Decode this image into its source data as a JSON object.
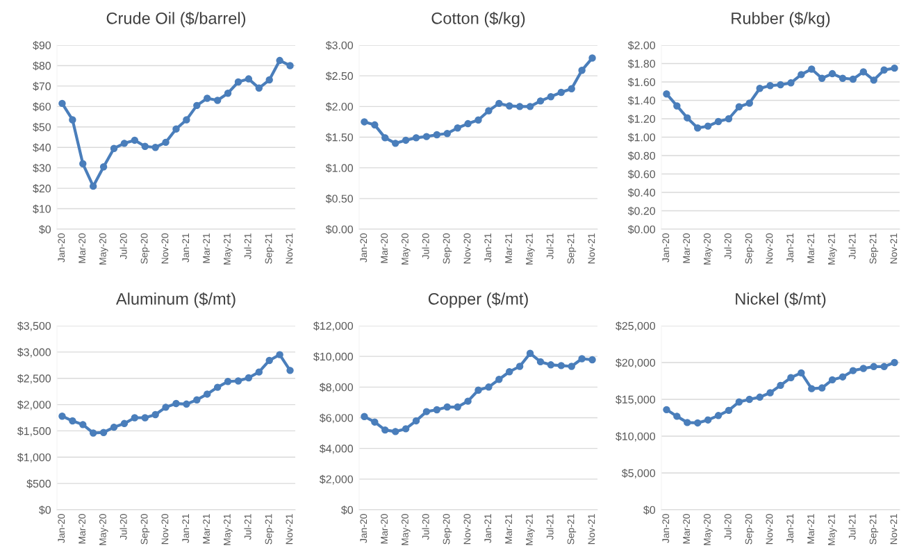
{
  "chart_data": [
    {
      "type": "line",
      "title": "Crude Oil ($/barrel)",
      "categories": [
        "Jan-20",
        null,
        "Mar-20",
        null,
        "May-20",
        null,
        "Jul-20",
        null,
        "Sep-20",
        null,
        "Nov-20",
        null,
        "Jan-21",
        null,
        "Mar-21",
        null,
        "May-21",
        null,
        "Jul-21",
        null,
        "Sep-21",
        null,
        "Nov-21"
      ],
      "series": [
        {
          "color": "#4a7ebb",
          "values": [
            61.5,
            53.5,
            32,
            21,
            30.5,
            39.5,
            42,
            43.5,
            40.5,
            40,
            42.5,
            49,
            53.5,
            60.5,
            64,
            63,
            66.5,
            72,
            73.5,
            69,
            73,
            82.5,
            80
          ]
        }
      ],
      "ylim": [
        0,
        90
      ],
      "yticks": [
        {
          "value": 0,
          "label": "$0"
        },
        {
          "value": 10,
          "label": "$10"
        },
        {
          "value": 20,
          "label": "$20"
        },
        {
          "value": 30,
          "label": "$30"
        },
        {
          "value": 40,
          "label": "$40"
        },
        {
          "value": 50,
          "label": "$50"
        },
        {
          "value": 60,
          "label": "$60"
        },
        {
          "value": 70,
          "label": "$70"
        },
        {
          "value": 80,
          "label": "$80"
        },
        {
          "value": 90,
          "label": "$90"
        }
      ],
      "grid": "y",
      "marker": "circle",
      "line_style": "solid"
    },
    {
      "type": "line",
      "title": "Cotton ($/kg)",
      "categories": [
        "Jan-20",
        null,
        "Mar-20",
        null,
        "May-20",
        null,
        "Jul-20",
        null,
        "Sep-20",
        null,
        "Nov-20",
        null,
        "Jan-21",
        null,
        "Mar-21",
        null,
        "May-21",
        null,
        "Jul-21",
        null,
        "Sep-21",
        null,
        "Nov-21"
      ],
      "series": [
        {
          "color": "#4a7ebb",
          "values": [
            1.75,
            1.7,
            1.49,
            1.4,
            1.45,
            1.49,
            1.51,
            1.54,
            1.56,
            1.65,
            1.72,
            1.78,
            1.93,
            2.05,
            2.01,
            2.0,
            2.0,
            2.09,
            2.16,
            2.23,
            2.29,
            2.59,
            2.79
          ]
        }
      ],
      "ylim": [
        0,
        3
      ],
      "yticks": [
        {
          "value": 0,
          "label": "$0.00"
        },
        {
          "value": 0.5,
          "label": "$0.50"
        },
        {
          "value": 1,
          "label": "$1.00"
        },
        {
          "value": 1.5,
          "label": "$1.50"
        },
        {
          "value": 2,
          "label": "$2.00"
        },
        {
          "value": 2.5,
          "label": "$2.50"
        },
        {
          "value": 3,
          "label": "$3.00"
        }
      ],
      "grid": "y",
      "marker": "circle",
      "line_style": "solid"
    },
    {
      "type": "line",
      "title": "Rubber ($/kg)",
      "categories": [
        "Jan-20",
        null,
        "Mar-20",
        null,
        "May-20",
        null,
        "Jul-20",
        null,
        "Sep-20",
        null,
        "Nov-20",
        null,
        "Jan-21",
        null,
        "Mar-21",
        null,
        "May-21",
        null,
        "Jul-21",
        null,
        "Sep-21",
        null,
        "Nov-21"
      ],
      "series": [
        {
          "color": "#4a7ebb",
          "values": [
            1.47,
            1.34,
            1.21,
            1.1,
            1.12,
            1.17,
            1.2,
            1.33,
            1.37,
            1.53,
            1.56,
            1.57,
            1.59,
            1.68,
            1.74,
            1.64,
            1.69,
            1.64,
            1.63,
            1.71,
            1.62,
            1.73,
            1.75
          ]
        }
      ],
      "ylim": [
        0,
        2
      ],
      "yticks": [
        {
          "value": 0,
          "label": "$0.00"
        },
        {
          "value": 0.2,
          "label": "$0.20"
        },
        {
          "value": 0.4,
          "label": "$0.40"
        },
        {
          "value": 0.6,
          "label": "$0.60"
        },
        {
          "value": 0.8,
          "label": "$0.80"
        },
        {
          "value": 1,
          "label": "$1.00"
        },
        {
          "value": 1.2,
          "label": "$1.20"
        },
        {
          "value": 1.4,
          "label": "$1.40"
        },
        {
          "value": 1.6,
          "label": "$1.60"
        },
        {
          "value": 1.8,
          "label": "$1.80"
        },
        {
          "value": 2,
          "label": "$2.00"
        }
      ],
      "grid": "y",
      "marker": "circle",
      "line_style": "solid"
    },
    {
      "type": "line",
      "title": "Aluminum ($/mt)",
      "categories": [
        "Jan-20",
        null,
        "Mar-20",
        null,
        "May-20",
        null,
        "Jul-20",
        null,
        "Sep-20",
        null,
        "Nov-20",
        null,
        "Jan-21",
        null,
        "Mar-21",
        null,
        "May-21",
        null,
        "Jul-21",
        null,
        "Sep-21",
        null,
        "Nov-21"
      ],
      "series": [
        {
          "color": "#4a7ebb",
          "values": [
            1780,
            1690,
            1620,
            1460,
            1470,
            1570,
            1640,
            1750,
            1750,
            1810,
            1950,
            2020,
            2010,
            2090,
            2200,
            2330,
            2440,
            2450,
            2510,
            2620,
            2840,
            2950,
            2650
          ]
        }
      ],
      "ylim": [
        0,
        3500
      ],
      "yticks": [
        {
          "value": 0,
          "label": "$0"
        },
        {
          "value": 500,
          "label": "$500"
        },
        {
          "value": 1000,
          "label": "$1,000"
        },
        {
          "value": 1500,
          "label": "$1,500"
        },
        {
          "value": 2000,
          "label": "$2,000"
        },
        {
          "value": 2500,
          "label": "$2,500"
        },
        {
          "value": 3000,
          "label": "$3,000"
        },
        {
          "value": 3500,
          "label": "$3,500"
        }
      ],
      "grid": "y",
      "marker": "circle",
      "line_style": "solid"
    },
    {
      "type": "line",
      "title": "Copper ($/mt)",
      "categories": [
        "Jan-20",
        null,
        "Mar-20",
        null,
        "May-20",
        null,
        "Jul-20",
        null,
        "Sep-20",
        null,
        "Nov-20",
        null,
        "Jan-21",
        null,
        "Mar-21",
        null,
        "May-21",
        null,
        "Jul-21",
        null,
        "Sep-21",
        null,
        "Nov-21"
      ],
      "series": [
        {
          "color": "#4a7ebb",
          "values": [
            6080,
            5720,
            5200,
            5100,
            5280,
            5800,
            6400,
            6520,
            6700,
            6700,
            7080,
            7800,
            8000,
            8500,
            9000,
            9350,
            10200,
            9650,
            9450,
            9400,
            9350,
            9850,
            9780
          ]
        }
      ],
      "ylim": [
        0,
        12000
      ],
      "yticks": [
        {
          "value": 0,
          "label": "$0"
        },
        {
          "value": 2000,
          "label": "$2,000"
        },
        {
          "value": 4000,
          "label": "$4,000"
        },
        {
          "value": 6000,
          "label": "$6,000"
        },
        {
          "value": 8000,
          "label": "$8,000"
        },
        {
          "value": 10000,
          "label": "$10,000"
        },
        {
          "value": 12000,
          "label": "$12,000"
        }
      ],
      "grid": "y",
      "marker": "circle",
      "line_style": "solid"
    },
    {
      "type": "line",
      "title": "Nickel ($/mt)",
      "categories": [
        "Jan-20",
        null,
        "Mar-20",
        null,
        "May-20",
        null,
        "Jul-20",
        null,
        "Sep-20",
        null,
        "Nov-20",
        null,
        "Jan-21",
        null,
        "Mar-21",
        null,
        "May-21",
        null,
        "Jul-21",
        null,
        "Sep-21",
        null,
        "Nov-21"
      ],
      "series": [
        {
          "color": "#4a7ebb",
          "values": [
            13600,
            12700,
            11850,
            11800,
            12200,
            12800,
            13500,
            14650,
            15000,
            15300,
            15900,
            16900,
            17950,
            18600,
            16450,
            16550,
            17650,
            18050,
            18900,
            19200,
            19450,
            19450,
            20000
          ]
        }
      ],
      "ylim": [
        0,
        25000
      ],
      "yticks": [
        {
          "value": 0,
          "label": "$0"
        },
        {
          "value": 5000,
          "label": "$5,000"
        },
        {
          "value": 10000,
          "label": "$10,000"
        },
        {
          "value": 15000,
          "label": "$15,000"
        },
        {
          "value": 20000,
          "label": "$20,000"
        },
        {
          "value": 25000,
          "label": "$25,000"
        }
      ],
      "grid": "y",
      "marker": "circle",
      "line_style": "solid"
    }
  ]
}
